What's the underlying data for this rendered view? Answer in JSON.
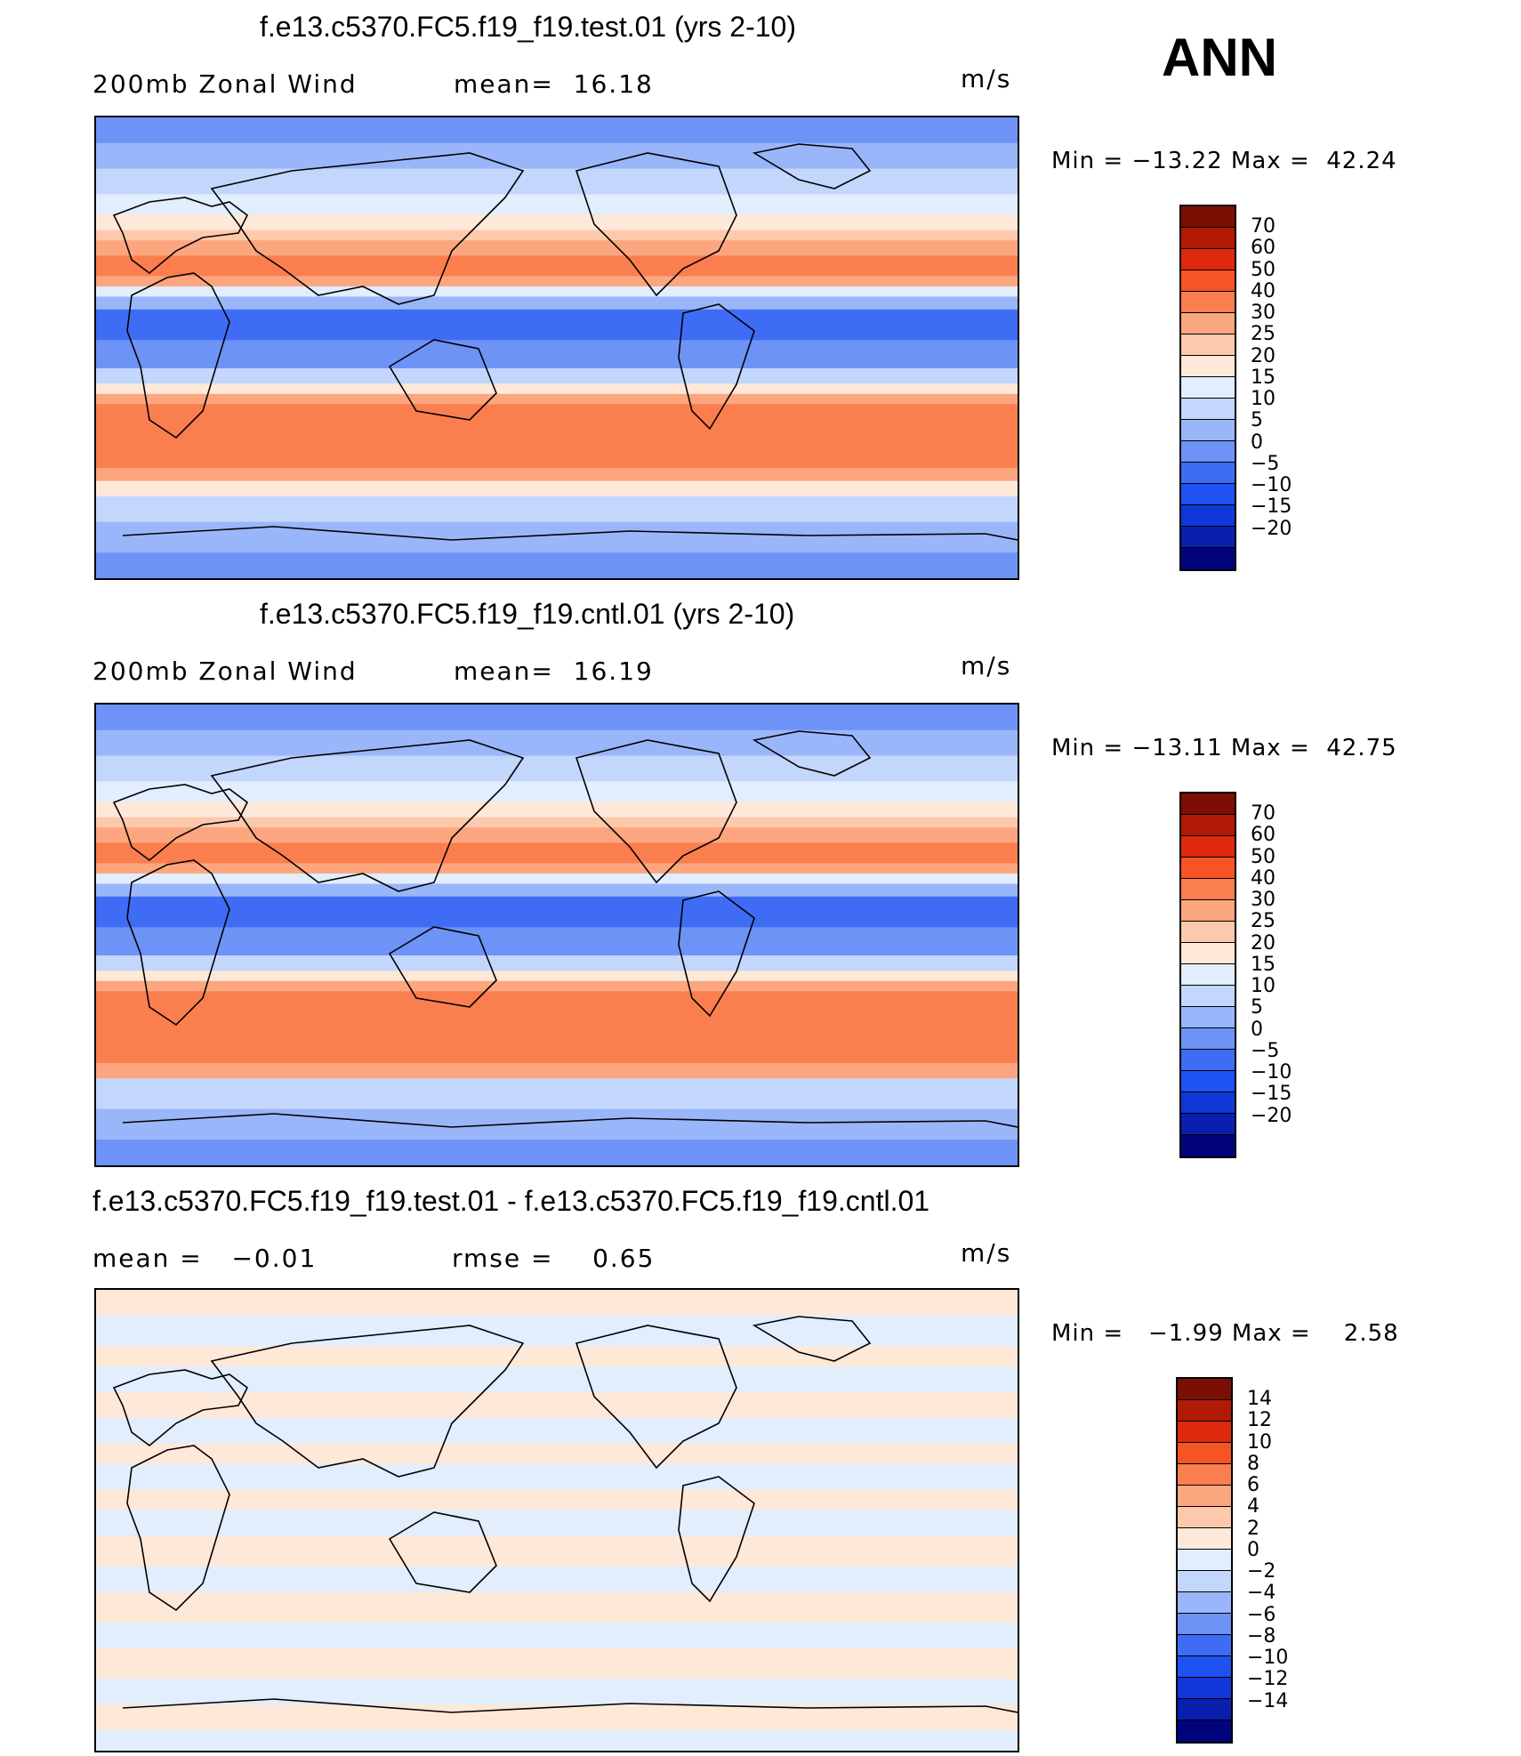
{
  "season": "ANN",
  "palette": {
    "wind": [
      "#00037c",
      "#0a1fb0",
      "#1237d8",
      "#1f52f2",
      "#3f6cf5",
      "#6e93f7",
      "#9ab6fa",
      "#c3d6fc",
      "#e2edfd",
      "#fee8d8",
      "#fdc9ac",
      "#fca67f",
      "#fb7e4f",
      "#f65424",
      "#dd2a0c",
      "#b11a06",
      "#7d0e03"
    ],
    "diff": [
      "#00037c",
      "#0a1fb0",
      "#1237d8",
      "#1f52f2",
      "#3f6cf5",
      "#6e93f7",
      "#9ab6fa",
      "#c3d6fc",
      "#e2edfd",
      "#fee8d8",
      "#fdc9ac",
      "#fca67f",
      "#fb7e4f",
      "#f65424",
      "#dd2a0c",
      "#b11a06",
      "#7d0e03"
    ]
  },
  "panels": [
    {
      "title": "f.e13.c5370.FC5.f19_f19.test.01 (yrs 2-10)",
      "left_text": "200mb Zonal Wind",
      "mid_text": "mean=  16.18",
      "units": "m/s",
      "minmax": "Min = −13.22 Max =  42.24",
      "levels": [
        "70",
        "60",
        "50",
        "40",
        "30",
        "25",
        "20",
        "15",
        "10",
        "5",
        "0",
        "−5",
        "−10",
        "−15",
        "−20"
      ],
      "bands": [
        {
          "lat": 90,
          "color": "#6e93f7"
        },
        {
          "lat": 80,
          "color": "#9ab6fa"
        },
        {
          "lat": 70,
          "color": "#c3d6fc"
        },
        {
          "lat": 60,
          "color": "#e2edfd"
        },
        {
          "lat": 52,
          "color": "#fee8d8"
        },
        {
          "lat": 46,
          "color": "#fdc9ac"
        },
        {
          "lat": 42,
          "color": "#fca67f"
        },
        {
          "lat": 36,
          "color": "#fb7e4f"
        },
        {
          "lat": 28,
          "color": "#fca67f"
        },
        {
          "lat": 24,
          "color": "#e2edfd"
        },
        {
          "lat": 20,
          "color": "#9ab6fa"
        },
        {
          "lat": 15,
          "color": "#3f6cf5"
        },
        {
          "lat": 3,
          "color": "#6e93f7"
        },
        {
          "lat": -8,
          "color": "#c3d6fc"
        },
        {
          "lat": -14,
          "color": "#fee8d8"
        },
        {
          "lat": -18,
          "color": "#fca67f"
        },
        {
          "lat": -22,
          "color": "#fb7e4f"
        },
        {
          "lat": -47,
          "color": "#fca67f"
        },
        {
          "lat": -52,
          "color": "#fee8d8"
        },
        {
          "lat": -58,
          "color": "#c3d6fc"
        },
        {
          "lat": -68,
          "color": "#9ab6fa"
        },
        {
          "lat": -80,
          "color": "#6e93f7"
        }
      ]
    },
    {
      "title": "f.e13.c5370.FC5.f19_f19.cntl.01 (yrs 2-10)",
      "left_text": "200mb Zonal Wind",
      "mid_text": "mean=  16.19",
      "units": "m/s",
      "minmax": "Min = −13.11 Max =  42.75",
      "levels": [
        "70",
        "60",
        "50",
        "40",
        "30",
        "25",
        "20",
        "15",
        "10",
        "5",
        "0",
        "−5",
        "−10",
        "−15",
        "−20"
      ],
      "bands": [
        {
          "lat": 90,
          "color": "#6e93f7"
        },
        {
          "lat": 80,
          "color": "#9ab6fa"
        },
        {
          "lat": 70,
          "color": "#c3d6fc"
        },
        {
          "lat": 60,
          "color": "#e2edfd"
        },
        {
          "lat": 52,
          "color": "#fee8d8"
        },
        {
          "lat": 46,
          "color": "#fdc9ac"
        },
        {
          "lat": 42,
          "color": "#fca67f"
        },
        {
          "lat": 36,
          "color": "#fb7e4f"
        },
        {
          "lat": 28,
          "color": "#fca67f"
        },
        {
          "lat": 24,
          "color": "#e2edfd"
        },
        {
          "lat": 20,
          "color": "#9ab6fa"
        },
        {
          "lat": 15,
          "color": "#3f6cf5"
        },
        {
          "lat": 3,
          "color": "#6e93f7"
        },
        {
          "lat": -8,
          "color": "#c3d6fc"
        },
        {
          "lat": -14,
          "color": "#fee8d8"
        },
        {
          "lat": -18,
          "color": "#fca67f"
        },
        {
          "lat": -22,
          "color": "#fb7e4f"
        },
        {
          "lat": -50,
          "color": "#fca67f"
        },
        {
          "lat": -56,
          "color": "#c3d6fc"
        },
        {
          "lat": -68,
          "color": "#9ab6fa"
        },
        {
          "lat": -80,
          "color": "#6e93f7"
        }
      ]
    },
    {
      "title": "f.e13.c5370.FC5.f19_f19.test.01 - f.e13.c5370.FC5.f19_f19.cntl.01",
      "left_text": "mean =   −0.01",
      "mid_text": "rmse =    0.65",
      "units": "m/s",
      "minmax": "Min =   −1.99 Max =    2.58",
      "levels": [
        "14",
        "12",
        "10",
        "8",
        "6",
        "4",
        "2",
        "0",
        "−2",
        "−4",
        "−6",
        "−8",
        "−10",
        "−12",
        "−14"
      ],
      "bands": [
        {
          "lat": 90,
          "color": "#fee8d8"
        },
        {
          "lat": 80,
          "color": "#e2edfd"
        },
        {
          "lat": 68,
          "color": "#fee8d8"
        },
        {
          "lat": 60,
          "color": "#e2edfd"
        },
        {
          "lat": 50,
          "color": "#fee8d8"
        },
        {
          "lat": 40,
          "color": "#e2edfd"
        },
        {
          "lat": 30,
          "color": "#fee8d8"
        },
        {
          "lat": 22,
          "color": "#e2edfd"
        },
        {
          "lat": 12,
          "color": "#fee8d8"
        },
        {
          "lat": 4,
          "color": "#e2edfd"
        },
        {
          "lat": -6,
          "color": "#fee8d8"
        },
        {
          "lat": -18,
          "color": "#e2edfd"
        },
        {
          "lat": -28,
          "color": "#fee8d8"
        },
        {
          "lat": -40,
          "color": "#e2edfd"
        },
        {
          "lat": -50,
          "color": "#fee8d8"
        },
        {
          "lat": -62,
          "color": "#e2edfd"
        },
        {
          "lat": -72,
          "color": "#fee8d8"
        },
        {
          "lat": -82,
          "color": "#e2edfd"
        }
      ]
    }
  ]
}
